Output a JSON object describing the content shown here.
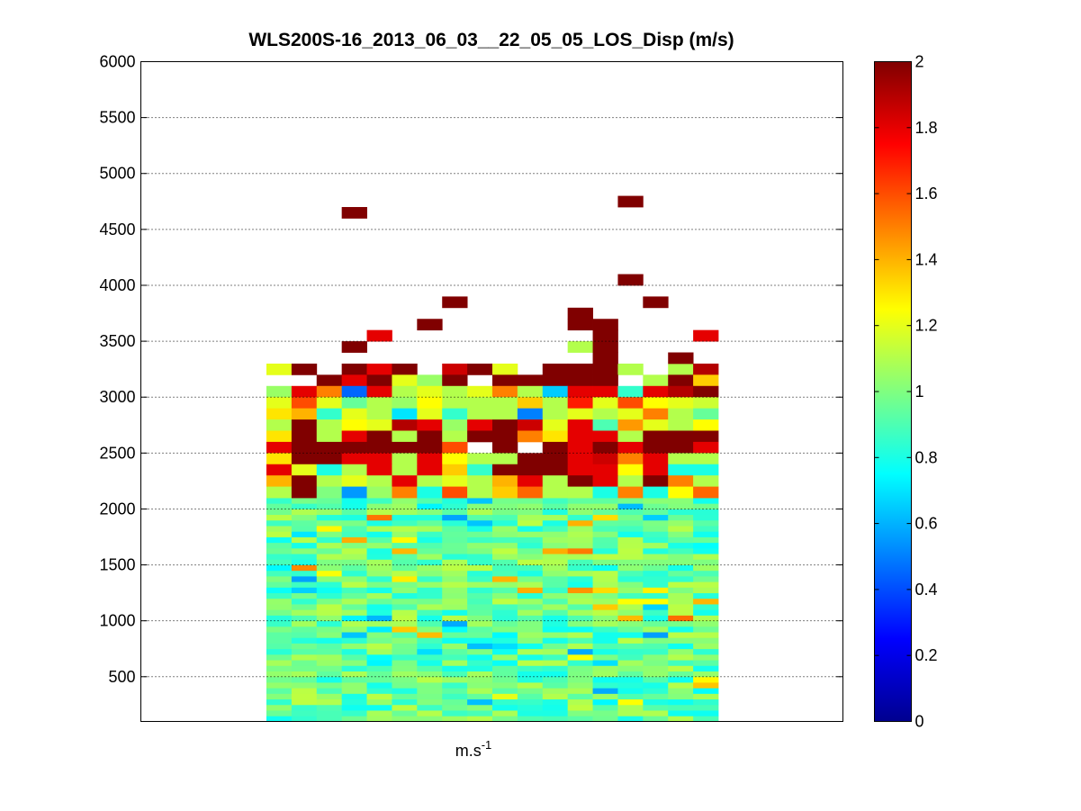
{
  "chart_data": {
    "type": "heatmap",
    "title": "WLS200S-16_2013_06_03__22_05_05_LOS_Disp (m/s)",
    "xlabel_base": "m.s",
    "xlabel_exp": "-1",
    "ylabel": "",
    "ylim": [
      100,
      6000
    ],
    "yticks": [
      500,
      1000,
      1500,
      2000,
      2500,
      3000,
      3500,
      4000,
      4500,
      5000,
      5500,
      6000
    ],
    "ygrid": "dotted",
    "colorbar": {
      "colormap": "jet",
      "range": [
        0,
        2
      ],
      "ticks": [
        0,
        0.2,
        0.4,
        0.6,
        0.8,
        1,
        1.2,
        1.4,
        1.6,
        1.8,
        2
      ],
      "tick_labels": [
        "0",
        "0.2",
        "0.4",
        "0.6",
        "0.8",
        "1",
        "1.2",
        "1.4",
        "1.6",
        "1.8",
        "2"
      ]
    },
    "columns": 18,
    "range_gate_start": 100,
    "range_gate_step": 50,
    "dense_layer_top": 2100,
    "dense_layer_mean": 0.95,
    "cells": [
      {
        "c": 0,
        "y": 3250,
        "v": 1.2
      },
      {
        "c": 1,
        "y": 3250,
        "v": 2.0
      },
      {
        "c": 3,
        "y": 3250,
        "v": 2.0
      },
      {
        "c": 4,
        "y": 3250,
        "v": 1.8
      },
      {
        "c": 5,
        "y": 3250,
        "v": 2.0
      },
      {
        "c": 7,
        "y": 3250,
        "v": 1.85
      },
      {
        "c": 8,
        "y": 3250,
        "v": 2.0
      },
      {
        "c": 9,
        "y": 3250,
        "v": 1.2
      },
      {
        "c": 11,
        "y": 3250,
        "v": 2.0
      },
      {
        "c": 12,
        "y": 3250,
        "v": 2.0
      },
      {
        "c": 13,
        "y": 3250,
        "v": 2.0
      },
      {
        "c": 14,
        "y": 3250,
        "v": 1.1
      },
      {
        "c": 16,
        "y": 3250,
        "v": 1.1
      },
      {
        "c": 17,
        "y": 3250,
        "v": 1.9
      },
      {
        "c": 2,
        "y": 3150,
        "v": 2.0
      },
      {
        "c": 3,
        "y": 3150,
        "v": 1.8
      },
      {
        "c": 4,
        "y": 3150,
        "v": 2.0
      },
      {
        "c": 5,
        "y": 3150,
        "v": 1.2
      },
      {
        "c": 6,
        "y": 3150,
        "v": 1.05
      },
      {
        "c": 7,
        "y": 3150,
        "v": 2.0
      },
      {
        "c": 9,
        "y": 3150,
        "v": 2.0
      },
      {
        "c": 10,
        "y": 3150,
        "v": 2.0
      },
      {
        "c": 11,
        "y": 3150,
        "v": 2.0
      },
      {
        "c": 12,
        "y": 3150,
        "v": 2.0
      },
      {
        "c": 13,
        "y": 3150,
        "v": 2.0
      },
      {
        "c": 15,
        "y": 3150,
        "v": 1.1
      },
      {
        "c": 16,
        "y": 3150,
        "v": 2.0
      },
      {
        "c": 17,
        "y": 3150,
        "v": 1.35
      },
      {
        "c": 0,
        "y": 3050,
        "v": 1.05
      },
      {
        "c": 1,
        "y": 3050,
        "v": 1.8
      },
      {
        "c": 2,
        "y": 3050,
        "v": 1.5
      },
      {
        "c": 3,
        "y": 3050,
        "v": 0.45
      },
      {
        "c": 4,
        "y": 3050,
        "v": 1.8
      },
      {
        "c": 5,
        "y": 3050,
        "v": 1.1
      },
      {
        "c": 6,
        "y": 3050,
        "v": 1.2
      },
      {
        "c": 7,
        "y": 3050,
        "v": 1.1
      },
      {
        "c": 8,
        "y": 3050,
        "v": 1.2
      },
      {
        "c": 9,
        "y": 3050,
        "v": 1.5
      },
      {
        "c": 10,
        "y": 3050,
        "v": 1.1
      },
      {
        "c": 11,
        "y": 3050,
        "v": 0.65
      },
      {
        "c": 12,
        "y": 3050,
        "v": 1.8
      },
      {
        "c": 13,
        "y": 3050,
        "v": 1.8
      },
      {
        "c": 14,
        "y": 3050,
        "v": 0.85
      },
      {
        "c": 15,
        "y": 3050,
        "v": 1.8
      },
      {
        "c": 16,
        "y": 3050,
        "v": 1.9
      },
      {
        "c": 17,
        "y": 3050,
        "v": 2.0
      },
      {
        "c": 0,
        "y": 2950,
        "v": 1.2
      },
      {
        "c": 1,
        "y": 2950,
        "v": 1.6
      },
      {
        "c": 2,
        "y": 2950,
        "v": 1.2
      },
      {
        "c": 3,
        "y": 2950,
        "v": 0.95
      },
      {
        "c": 4,
        "y": 2950,
        "v": 1.1
      },
      {
        "c": 5,
        "y": 2950,
        "v": 1.05
      },
      {
        "c": 6,
        "y": 2950,
        "v": 1.25
      },
      {
        "c": 7,
        "y": 2950,
        "v": 1.1
      },
      {
        "c": 8,
        "y": 2950,
        "v": 1.1
      },
      {
        "c": 9,
        "y": 2950,
        "v": 1.1
      },
      {
        "c": 10,
        "y": 2950,
        "v": 1.35
      },
      {
        "c": 11,
        "y": 2950,
        "v": 1.1
      },
      {
        "c": 12,
        "y": 2950,
        "v": 1.7
      },
      {
        "c": 13,
        "y": 2950,
        "v": 1.2
      },
      {
        "c": 14,
        "y": 2950,
        "v": 1.6
      },
      {
        "c": 15,
        "y": 2950,
        "v": 1.25
      },
      {
        "c": 16,
        "y": 2950,
        "v": 1.2
      },
      {
        "c": 17,
        "y": 2950,
        "v": 1.15
      },
      {
        "c": 0,
        "y": 2850,
        "v": 1.3
      },
      {
        "c": 1,
        "y": 2850,
        "v": 1.4
      },
      {
        "c": 2,
        "y": 2850,
        "v": 0.85
      },
      {
        "c": 3,
        "y": 2850,
        "v": 1.2
      },
      {
        "c": 4,
        "y": 2850,
        "v": 1.1
      },
      {
        "c": 5,
        "y": 2850,
        "v": 0.7
      },
      {
        "c": 6,
        "y": 2850,
        "v": 1.2
      },
      {
        "c": 7,
        "y": 2850,
        "v": 0.85
      },
      {
        "c": 8,
        "y": 2850,
        "v": 1.1
      },
      {
        "c": 9,
        "y": 2850,
        "v": 1.1
      },
      {
        "c": 10,
        "y": 2850,
        "v": 0.5
      },
      {
        "c": 11,
        "y": 2850,
        "v": 1.1
      },
      {
        "c": 12,
        "y": 2850,
        "v": 1.2
      },
      {
        "c": 13,
        "y": 2850,
        "v": 1.1
      },
      {
        "c": 14,
        "y": 2850,
        "v": 1.2
      },
      {
        "c": 15,
        "y": 2850,
        "v": 1.5
      },
      {
        "c": 16,
        "y": 2850,
        "v": 1.1
      },
      {
        "c": 17,
        "y": 2850,
        "v": 0.95
      },
      {
        "c": 0,
        "y": 2750,
        "v": 1.1
      },
      {
        "c": 1,
        "y": 2750,
        "v": 2.0
      },
      {
        "c": 2,
        "y": 2750,
        "v": 1.1
      },
      {
        "c": 3,
        "y": 2750,
        "v": 1.25
      },
      {
        "c": 4,
        "y": 2750,
        "v": 1.2
      },
      {
        "c": 5,
        "y": 2750,
        "v": 1.9
      },
      {
        "c": 6,
        "y": 2750,
        "v": 1.8
      },
      {
        "c": 7,
        "y": 2750,
        "v": 1.05
      },
      {
        "c": 8,
        "y": 2750,
        "v": 1.8
      },
      {
        "c": 9,
        "y": 2750,
        "v": 2.0
      },
      {
        "c": 10,
        "y": 2750,
        "v": 1.85
      },
      {
        "c": 11,
        "y": 2750,
        "v": 1.2
      },
      {
        "c": 12,
        "y": 2750,
        "v": 1.8
      },
      {
        "c": 13,
        "y": 2750,
        "v": 0.9
      },
      {
        "c": 14,
        "y": 2750,
        "v": 1.45
      },
      {
        "c": 15,
        "y": 2750,
        "v": 1.2
      },
      {
        "c": 16,
        "y": 2750,
        "v": 1.1
      },
      {
        "c": 17,
        "y": 2750,
        "v": 1.25
      },
      {
        "c": 0,
        "y": 2650,
        "v": 1.3
      },
      {
        "c": 1,
        "y": 2650,
        "v": 2.0
      },
      {
        "c": 2,
        "y": 2650,
        "v": 1.1
      },
      {
        "c": 3,
        "y": 2650,
        "v": 1.8
      },
      {
        "c": 4,
        "y": 2650,
        "v": 2.0
      },
      {
        "c": 5,
        "y": 2650,
        "v": 1.1
      },
      {
        "c": 6,
        "y": 2650,
        "v": 2.0
      },
      {
        "c": 7,
        "y": 2650,
        "v": 1.1
      },
      {
        "c": 8,
        "y": 2650,
        "v": 2.0
      },
      {
        "c": 9,
        "y": 2650,
        "v": 2.0
      },
      {
        "c": 10,
        "y": 2650,
        "v": 1.5
      },
      {
        "c": 11,
        "y": 2650,
        "v": 1.3
      },
      {
        "c": 12,
        "y": 2650,
        "v": 1.8
      },
      {
        "c": 13,
        "y": 2650,
        "v": 1.8
      },
      {
        "c": 14,
        "y": 2650,
        "v": 1.1
      },
      {
        "c": 15,
        "y": 2650,
        "v": 2.0
      },
      {
        "c": 16,
        "y": 2650,
        "v": 2.0
      },
      {
        "c": 17,
        "y": 2650,
        "v": 2.0
      },
      {
        "c": 0,
        "y": 2550,
        "v": 1.8
      },
      {
        "c": 1,
        "y": 2550,
        "v": 2.0
      },
      {
        "c": 2,
        "y": 2550,
        "v": 2.0
      },
      {
        "c": 3,
        "y": 2550,
        "v": 2.0
      },
      {
        "c": 4,
        "y": 2550,
        "v": 2.0
      },
      {
        "c": 5,
        "y": 2550,
        "v": 2.0
      },
      {
        "c": 6,
        "y": 2550,
        "v": 2.0
      },
      {
        "c": 7,
        "y": 2550,
        "v": 1.6
      },
      {
        "c": 9,
        "y": 2550,
        "v": 2.0
      },
      {
        "c": 11,
        "y": 2550,
        "v": 2.0
      },
      {
        "c": 12,
        "y": 2550,
        "v": 1.8
      },
      {
        "c": 13,
        "y": 2550,
        "v": 2.0
      },
      {
        "c": 14,
        "y": 2550,
        "v": 1.8
      },
      {
        "c": 15,
        "y": 2550,
        "v": 2.0
      },
      {
        "c": 16,
        "y": 2550,
        "v": 2.0
      },
      {
        "c": 17,
        "y": 2550,
        "v": 1.8
      },
      {
        "c": 0,
        "y": 2450,
        "v": 1.3
      },
      {
        "c": 1,
        "y": 2450,
        "v": 2.0
      },
      {
        "c": 2,
        "y": 2450,
        "v": 2.0
      },
      {
        "c": 3,
        "y": 2450,
        "v": 1.8
      },
      {
        "c": 4,
        "y": 2450,
        "v": 1.8
      },
      {
        "c": 5,
        "y": 2450,
        "v": 1.1
      },
      {
        "c": 6,
        "y": 2450,
        "v": 1.8
      },
      {
        "c": 7,
        "y": 2450,
        "v": 1.25
      },
      {
        "c": 8,
        "y": 2450,
        "v": 1.1
      },
      {
        "c": 9,
        "y": 2450,
        "v": 1.1
      },
      {
        "c": 10,
        "y": 2450,
        "v": 2.0
      },
      {
        "c": 11,
        "y": 2450,
        "v": 2.0
      },
      {
        "c": 12,
        "y": 2450,
        "v": 1.8
      },
      {
        "c": 13,
        "y": 2450,
        "v": 1.85
      },
      {
        "c": 14,
        "y": 2450,
        "v": 1.5
      },
      {
        "c": 15,
        "y": 2450,
        "v": 1.8
      },
      {
        "c": 16,
        "y": 2450,
        "v": 1.1
      },
      {
        "c": 17,
        "y": 2450,
        "v": 1.1
      },
      {
        "c": 0,
        "y": 2350,
        "v": 1.8
      },
      {
        "c": 1,
        "y": 2350,
        "v": 1.2
      },
      {
        "c": 2,
        "y": 2350,
        "v": 0.8
      },
      {
        "c": 3,
        "y": 2350,
        "v": 1.1
      },
      {
        "c": 4,
        "y": 2350,
        "v": 1.8
      },
      {
        "c": 5,
        "y": 2350,
        "v": 1.1
      },
      {
        "c": 6,
        "y": 2350,
        "v": 1.8
      },
      {
        "c": 7,
        "y": 2350,
        "v": 1.35
      },
      {
        "c": 8,
        "y": 2350,
        "v": 0.85
      },
      {
        "c": 9,
        "y": 2350,
        "v": 2.0
      },
      {
        "c": 10,
        "y": 2350,
        "v": 2.0
      },
      {
        "c": 11,
        "y": 2350,
        "v": 2.0
      },
      {
        "c": 12,
        "y": 2350,
        "v": 1.8
      },
      {
        "c": 13,
        "y": 2350,
        "v": 1.8
      },
      {
        "c": 14,
        "y": 2350,
        "v": 1.25
      },
      {
        "c": 15,
        "y": 2350,
        "v": 1.8
      },
      {
        "c": 16,
        "y": 2350,
        "v": 0.8
      },
      {
        "c": 17,
        "y": 2350,
        "v": 0.8
      },
      {
        "c": 0,
        "y": 2250,
        "v": 1.4
      },
      {
        "c": 1,
        "y": 2250,
        "v": 2.0
      },
      {
        "c": 2,
        "y": 2250,
        "v": 1.1
      },
      {
        "c": 3,
        "y": 2250,
        "v": 1.2
      },
      {
        "c": 4,
        "y": 2250,
        "v": 1.1
      },
      {
        "c": 5,
        "y": 2250,
        "v": 1.8
      },
      {
        "c": 6,
        "y": 2250,
        "v": 1.1
      },
      {
        "c": 7,
        "y": 2250,
        "v": 1.2
      },
      {
        "c": 8,
        "y": 2250,
        "v": 1.1
      },
      {
        "c": 9,
        "y": 2250,
        "v": 1.4
      },
      {
        "c": 10,
        "y": 2250,
        "v": 1.8
      },
      {
        "c": 11,
        "y": 2250,
        "v": 1.1
      },
      {
        "c": 12,
        "y": 2250,
        "v": 2.0
      },
      {
        "c": 13,
        "y": 2250,
        "v": 1.8
      },
      {
        "c": 14,
        "y": 2250,
        "v": 1.1
      },
      {
        "c": 15,
        "y": 2250,
        "v": 2.0
      },
      {
        "c": 16,
        "y": 2250,
        "v": 1.5
      },
      {
        "c": 17,
        "y": 2250,
        "v": 1.1
      },
      {
        "c": 0,
        "y": 2150,
        "v": 1.1
      },
      {
        "c": 1,
        "y": 2150,
        "v": 2.0
      },
      {
        "c": 2,
        "y": 2150,
        "v": 1.0
      },
      {
        "c": 3,
        "y": 2150,
        "v": 0.55
      },
      {
        "c": 4,
        "y": 2150,
        "v": 1.05
      },
      {
        "c": 5,
        "y": 2150,
        "v": 1.5
      },
      {
        "c": 6,
        "y": 2150,
        "v": 0.8
      },
      {
        "c": 7,
        "y": 2150,
        "v": 1.6
      },
      {
        "c": 8,
        "y": 2150,
        "v": 1.1
      },
      {
        "c": 9,
        "y": 2150,
        "v": 1.35
      },
      {
        "c": 10,
        "y": 2150,
        "v": 1.55
      },
      {
        "c": 11,
        "y": 2150,
        "v": 1.1
      },
      {
        "c": 12,
        "y": 2150,
        "v": 1.1
      },
      {
        "c": 13,
        "y": 2150,
        "v": 0.8
      },
      {
        "c": 14,
        "y": 2150,
        "v": 1.5
      },
      {
        "c": 15,
        "y": 2150,
        "v": 0.8
      },
      {
        "c": 16,
        "y": 2150,
        "v": 1.25
      },
      {
        "c": 17,
        "y": 2150,
        "v": 1.55
      },
      {
        "c": 3,
        "y": 3450,
        "v": 2.0
      },
      {
        "c": 4,
        "y": 3550,
        "v": 1.8
      },
      {
        "c": 6,
        "y": 3650,
        "v": 2.0
      },
      {
        "c": 7,
        "y": 3850,
        "v": 2.0
      },
      {
        "c": 12,
        "y": 3450,
        "v": 1.1
      },
      {
        "c": 12,
        "y": 3750,
        "v": 2.0
      },
      {
        "c": 12,
        "y": 3650,
        "v": 2.0
      },
      {
        "c": 13,
        "y": 3650,
        "v": 2.0
      },
      {
        "c": 13,
        "y": 3550,
        "v": 2.0
      },
      {
        "c": 13,
        "y": 3450,
        "v": 2.0
      },
      {
        "c": 13,
        "y": 3350,
        "v": 2.0
      },
      {
        "c": 16,
        "y": 3350,
        "v": 2.0
      },
      {
        "c": 15,
        "y": 3850,
        "v": 2.0
      },
      {
        "c": 14,
        "y": 4050,
        "v": 2.0
      },
      {
        "c": 17,
        "y": 3550,
        "v": 1.8
      },
      {
        "c": 3,
        "y": 4650,
        "v": 2.0
      },
      {
        "c": 14,
        "y": 4750,
        "v": 2.0
      }
    ]
  }
}
